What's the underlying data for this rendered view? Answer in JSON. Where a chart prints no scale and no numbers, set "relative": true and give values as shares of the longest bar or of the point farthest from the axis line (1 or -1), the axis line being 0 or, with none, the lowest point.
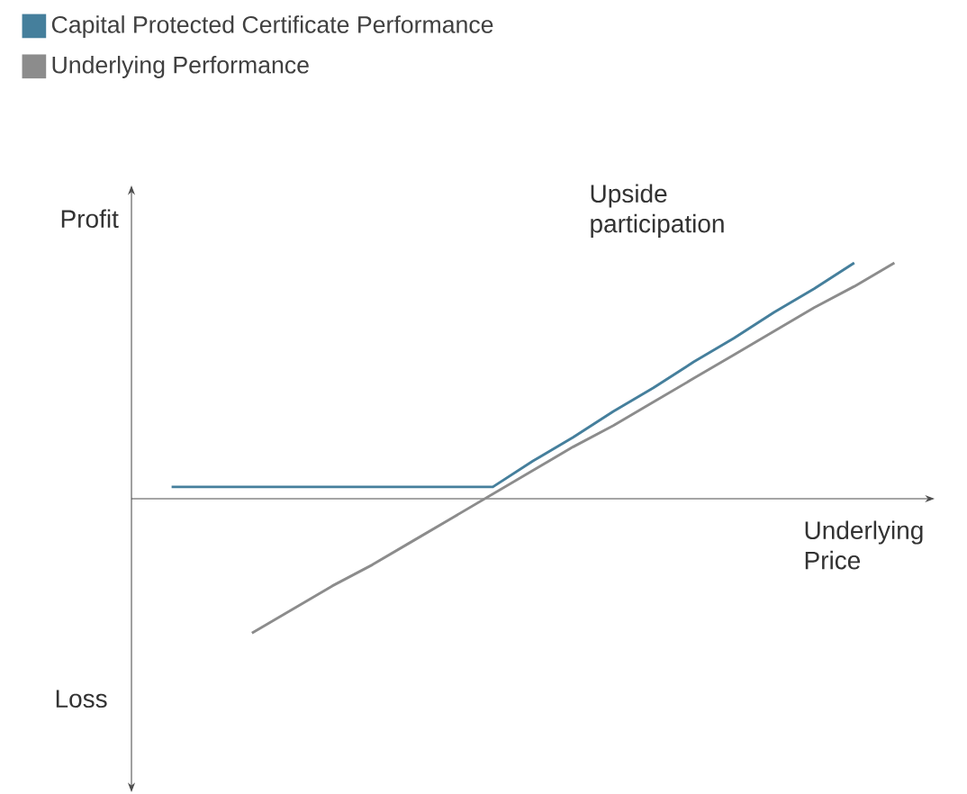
{
  "chart_data": {
    "type": "line",
    "relative": true,
    "ylabel": "Profit",
    "xlabel": "Underlying Price",
    "legend": "top left",
    "annotations": [
      "Upside participation",
      "Loss"
    ],
    "categories": [
      null,
      null,
      null,
      null,
      null,
      null,
      null,
      null,
      null,
      null,
      null,
      null,
      null,
      null,
      null,
      null,
      null,
      null,
      null,
      null,
      null
    ],
    "series": [
      {
        "name": "Capital Protected Certificate Performance",
        "color": "#457f9c",
        "values": [
          null,
          0.05,
          0.05,
          0.05,
          0.05,
          0.05,
          0.05,
          0.05,
          0.05,
          0.05,
          0.16,
          0.26,
          0.37,
          0.47,
          0.58,
          0.68,
          0.79,
          0.89,
          1.0,
          null,
          null
        ]
      },
      {
        "name": "Underlying Performance",
        "color": "#8c8c8c",
        "values": [
          null,
          null,
          null,
          -0.57,
          -0.47,
          -0.37,
          -0.28,
          -0.18,
          -0.08,
          0.02,
          0.12,
          0.22,
          0.31,
          0.41,
          0.51,
          0.61,
          0.71,
          0.81,
          0.9,
          1.0,
          null
        ]
      }
    ]
  }
}
